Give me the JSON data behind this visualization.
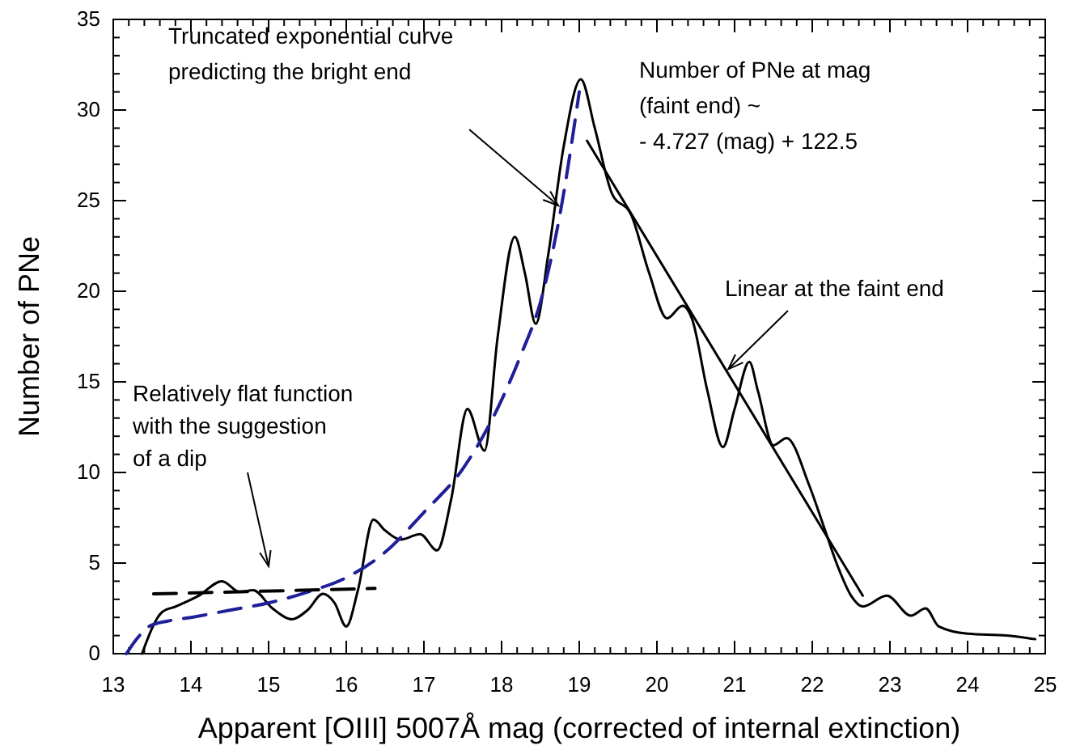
{
  "chart_data": {
    "type": "line",
    "xlabel": "Apparent [OIII] 5007Å mag (corrected of internal extinction)",
    "ylabel": "Number of PNe",
    "xlim": [
      13,
      25
    ],
    "xticks": [
      13,
      14,
      15,
      16,
      17,
      18,
      19,
      20,
      21,
      22,
      23,
      24,
      25
    ],
    "ylim": [
      0,
      35
    ],
    "yticks": [
      0,
      5,
      10,
      15,
      20,
      25,
      30,
      35
    ],
    "grid": false,
    "marker": "none",
    "series": [
      {
        "color": "#000000",
        "line_style": "solid",
        "x": [
          13.37,
          13.63,
          13.8,
          14.1,
          14.4,
          14.63,
          14.8,
          15.05,
          15.3,
          15.5,
          15.7,
          15.85,
          16.0,
          16.15,
          16.35,
          16.5,
          16.7,
          16.95,
          17.17,
          17.35,
          17.56,
          17.78,
          17.95,
          18.17,
          18.3,
          18.44,
          18.6,
          18.8,
          19.02,
          19.2,
          19.42,
          19.67,
          19.9,
          20.13,
          20.33,
          20.45,
          20.65,
          20.85,
          21.0,
          21.19,
          21.3,
          21.5,
          21.67,
          21.96,
          22.15,
          22.33,
          22.5,
          22.65,
          22.96,
          23.27,
          23.46,
          23.63,
          24.0,
          24.5,
          24.87
        ],
        "values": [
          0,
          2.3,
          2.6,
          3.2,
          4.0,
          3.4,
          3.5,
          2.5,
          1.9,
          2.4,
          3.3,
          2.8,
          1.5,
          3.5,
          7.4,
          6.8,
          6.3,
          6.6,
          5.7,
          8.5,
          13.5,
          11.2,
          17.5,
          23.0,
          21.0,
          18.2,
          22.0,
          28.0,
          31.7,
          29.0,
          25.4,
          24.2,
          21.0,
          18.5,
          19.2,
          18.5,
          14.5,
          11.4,
          13.5,
          16.1,
          14.5,
          11.5,
          11.9,
          9.3,
          7.0,
          4.8,
          3.2,
          2.6,
          3.2,
          2.1,
          2.5,
          1.5,
          1.1,
          1.0,
          0.8
        ]
      },
      {
        "color": "#1f1f9a",
        "line_style": "dashed",
        "x": [
          13.17,
          13.3,
          13.46,
          13.7,
          14.0,
          14.5,
          15.0,
          15.5,
          16.0,
          16.5,
          17.0,
          17.5,
          18.0,
          18.25,
          18.5,
          18.75,
          19.0
        ],
        "values": [
          0,
          0.8,
          1.5,
          1.8,
          2.0,
          2.4,
          2.8,
          3.4,
          4.2,
          5.6,
          7.8,
          10.2,
          14.0,
          16.5,
          19.4,
          24.2,
          31.0
        ]
      },
      {
        "color": "#000000",
        "line_style": "dashed",
        "x": [
          13.52,
          16.37
        ],
        "values": [
          3.3,
          3.6
        ]
      },
      {
        "color": "#000000",
        "line_style": "solid",
        "x": [
          19.1,
          22.65
        ],
        "values": [
          28.3,
          3.2
        ]
      }
    ],
    "annotations": [
      "Truncated exponential curve\npredicting the bright end",
      "Number of PNe at mag\n(faint end) ~\n- 4.727 (mag) + 122.5",
      {
        "text": "Linear at the faint end",
        "x": 20.92,
        "y": 15.7
      },
      "Relatively flat function\nwith the suggestion\nof a dip"
    ]
  }
}
